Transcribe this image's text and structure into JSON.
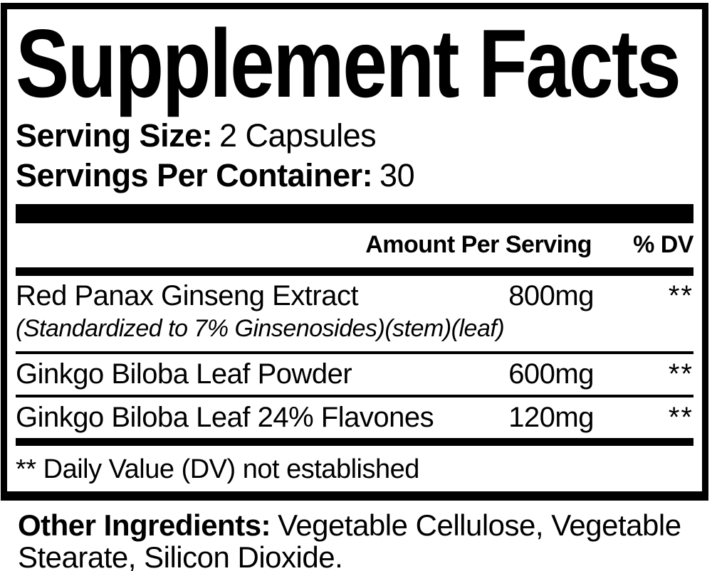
{
  "label": {
    "title": "Supplement Facts",
    "serving_size_label": "Serving Size:",
    "serving_size_value": "2 Capsules",
    "servings_per_container_label": "Servings Per Container:",
    "servings_per_container_value": "30",
    "header": {
      "amount": "Amount Per Serving",
      "dv": "% DV"
    },
    "rows": [
      {
        "name": "Red Panax Ginseng Extract",
        "detail": "(Standardized to 7% Ginsenosides)(stem)(leaf)",
        "amount": "800mg",
        "dv": "**"
      },
      {
        "name": "Ginkgo Biloba Leaf Powder",
        "amount": "600mg",
        "dv": "**"
      },
      {
        "name": "Ginkgo Biloba Leaf 24% Flavones",
        "amount": "120mg",
        "dv": "**"
      }
    ],
    "footnote": "** Daily Value (DV) not established",
    "other_ingredients_label": "Other Ingredients:",
    "other_ingredients_value": "Vegetable Cellulose, Vegetable Stearate, Silicon Dioxide.",
    "colors": {
      "ink": "#000000",
      "background": "#ffffff"
    }
  }
}
